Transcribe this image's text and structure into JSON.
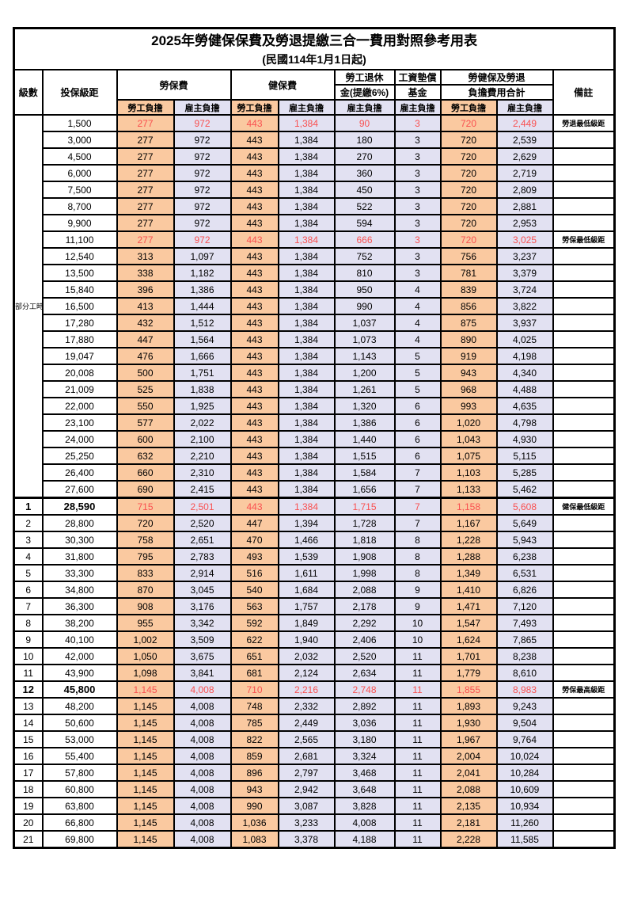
{
  "title": "2025年勞健保保費及勞退提繳三合一費用對照參考用表",
  "subtitle": "(民國114年1月1日起)",
  "colors": {
    "employee_bg": "#FAC9A0",
    "employer_bg": "#E2E1F2",
    "highlight_red": "#F95050",
    "border": "#000000"
  },
  "header": {
    "level": "級數",
    "bracket": "投保級距",
    "labor_insurance": "勞保費",
    "health_insurance": "健保費",
    "pension_line1": "勞工退休",
    "pension_line2": "金(提繳6%)",
    "wage_fund_line1": "工資墊償",
    "wage_fund_line2": "基金",
    "total_line1": "勞健保及勞退",
    "total_line2": "負擔費用合計",
    "employee": "勞工負擔",
    "employer": "雇主負擔",
    "remark": "備註"
  },
  "part_time_label": "部分工時",
  "part_time_rowspan": 23,
  "rows": [
    {
      "level": "",
      "bracket": "1,500",
      "v": [
        "277",
        "972",
        "443",
        "1,384",
        "90",
        "3",
        "720",
        "2,449"
      ],
      "remark": "勞退最低級距",
      "red": true,
      "bold": false
    },
    {
      "level": "",
      "bracket": "3,000",
      "v": [
        "277",
        "972",
        "443",
        "1,384",
        "180",
        "3",
        "720",
        "2,539"
      ],
      "remark": "",
      "red": false,
      "bold": false
    },
    {
      "level": "",
      "bracket": "4,500",
      "v": [
        "277",
        "972",
        "443",
        "1,384",
        "270",
        "3",
        "720",
        "2,629"
      ],
      "remark": "",
      "red": false,
      "bold": false
    },
    {
      "level": "",
      "bracket": "6,000",
      "v": [
        "277",
        "972",
        "443",
        "1,384",
        "360",
        "3",
        "720",
        "2,719"
      ],
      "remark": "",
      "red": false,
      "bold": false
    },
    {
      "level": "",
      "bracket": "7,500",
      "v": [
        "277",
        "972",
        "443",
        "1,384",
        "450",
        "3",
        "720",
        "2,809"
      ],
      "remark": "",
      "red": false,
      "bold": false
    },
    {
      "level": "",
      "bracket": "8,700",
      "v": [
        "277",
        "972",
        "443",
        "1,384",
        "522",
        "3",
        "720",
        "2,881"
      ],
      "remark": "",
      "red": false,
      "bold": false
    },
    {
      "level": "",
      "bracket": "9,900",
      "v": [
        "277",
        "972",
        "443",
        "1,384",
        "594",
        "3",
        "720",
        "2,953"
      ],
      "remark": "",
      "red": false,
      "bold": false
    },
    {
      "level": "",
      "bracket": "11,100",
      "v": [
        "277",
        "972",
        "443",
        "1,384",
        "666",
        "3",
        "720",
        "3,025"
      ],
      "remark": "勞保最低級距",
      "red": true,
      "bold": false
    },
    {
      "level": "",
      "bracket": "12,540",
      "v": [
        "313",
        "1,097",
        "443",
        "1,384",
        "752",
        "3",
        "756",
        "3,237"
      ],
      "remark": "",
      "red": false,
      "bold": false
    },
    {
      "level": "",
      "bracket": "13,500",
      "v": [
        "338",
        "1,182",
        "443",
        "1,384",
        "810",
        "3",
        "781",
        "3,379"
      ],
      "remark": "",
      "red": false,
      "bold": false
    },
    {
      "level": "",
      "bracket": "15,840",
      "v": [
        "396",
        "1,386",
        "443",
        "1,384",
        "950",
        "4",
        "839",
        "3,724"
      ],
      "remark": "",
      "red": false,
      "bold": false
    },
    {
      "level": "",
      "bracket": "16,500",
      "v": [
        "413",
        "1,444",
        "443",
        "1,384",
        "990",
        "4",
        "856",
        "3,822"
      ],
      "remark": "",
      "red": false,
      "bold": false
    },
    {
      "level": "",
      "bracket": "17,280",
      "v": [
        "432",
        "1,512",
        "443",
        "1,384",
        "1,037",
        "4",
        "875",
        "3,937"
      ],
      "remark": "",
      "red": false,
      "bold": false
    },
    {
      "level": "",
      "bracket": "17,880",
      "v": [
        "447",
        "1,564",
        "443",
        "1,384",
        "1,073",
        "4",
        "890",
        "4,025"
      ],
      "remark": "",
      "red": false,
      "bold": false
    },
    {
      "level": "",
      "bracket": "19,047",
      "v": [
        "476",
        "1,666",
        "443",
        "1,384",
        "1,143",
        "5",
        "919",
        "4,198"
      ],
      "remark": "",
      "red": false,
      "bold": false
    },
    {
      "level": "",
      "bracket": "20,008",
      "v": [
        "500",
        "1,751",
        "443",
        "1,384",
        "1,200",
        "5",
        "943",
        "4,340"
      ],
      "remark": "",
      "red": false,
      "bold": false
    },
    {
      "level": "",
      "bracket": "21,009",
      "v": [
        "525",
        "1,838",
        "443",
        "1,384",
        "1,261",
        "5",
        "968",
        "4,488"
      ],
      "remark": "",
      "red": false,
      "bold": false
    },
    {
      "level": "",
      "bracket": "22,000",
      "v": [
        "550",
        "1,925",
        "443",
        "1,384",
        "1,320",
        "6",
        "993",
        "4,635"
      ],
      "remark": "",
      "red": false,
      "bold": false
    },
    {
      "level": "",
      "bracket": "23,100",
      "v": [
        "577",
        "2,022",
        "443",
        "1,384",
        "1,386",
        "6",
        "1,020",
        "4,798"
      ],
      "remark": "",
      "red": false,
      "bold": false
    },
    {
      "level": "",
      "bracket": "24,000",
      "v": [
        "600",
        "2,100",
        "443",
        "1,384",
        "1,440",
        "6",
        "1,043",
        "4,930"
      ],
      "remark": "",
      "red": false,
      "bold": false
    },
    {
      "level": "",
      "bracket": "25,250",
      "v": [
        "632",
        "2,210",
        "443",
        "1,384",
        "1,515",
        "6",
        "1,075",
        "5,115"
      ],
      "remark": "",
      "red": false,
      "bold": false
    },
    {
      "level": "",
      "bracket": "26,400",
      "v": [
        "660",
        "2,310",
        "443",
        "1,384",
        "1,584",
        "7",
        "1,103",
        "5,285"
      ],
      "remark": "",
      "red": false,
      "bold": false
    },
    {
      "level": "",
      "bracket": "27,600",
      "v": [
        "690",
        "2,415",
        "443",
        "1,384",
        "1,656",
        "7",
        "1,133",
        "5,462"
      ],
      "remark": "",
      "red": false,
      "bold": false
    },
    {
      "level": "1",
      "bracket": "28,590",
      "v": [
        "715",
        "2,501",
        "443",
        "1,384",
        "1,715",
        "7",
        "1,158",
        "5,608"
      ],
      "remark": "健保最低級距",
      "red": true,
      "bold": true
    },
    {
      "level": "2",
      "bracket": "28,800",
      "v": [
        "720",
        "2,520",
        "447",
        "1,394",
        "1,728",
        "7",
        "1,167",
        "5,649"
      ],
      "remark": "",
      "red": false,
      "bold": false
    },
    {
      "level": "3",
      "bracket": "30,300",
      "v": [
        "758",
        "2,651",
        "470",
        "1,466",
        "1,818",
        "8",
        "1,228",
        "5,943"
      ],
      "remark": "",
      "red": false,
      "bold": false
    },
    {
      "level": "4",
      "bracket": "31,800",
      "v": [
        "795",
        "2,783",
        "493",
        "1,539",
        "1,908",
        "8",
        "1,288",
        "6,238"
      ],
      "remark": "",
      "red": false,
      "bold": false
    },
    {
      "level": "5",
      "bracket": "33,300",
      "v": [
        "833",
        "2,914",
        "516",
        "1,611",
        "1,998",
        "8",
        "1,349",
        "6,531"
      ],
      "remark": "",
      "red": false,
      "bold": false
    },
    {
      "level": "6",
      "bracket": "34,800",
      "v": [
        "870",
        "3,045",
        "540",
        "1,684",
        "2,088",
        "9",
        "1,410",
        "6,826"
      ],
      "remark": "",
      "red": false,
      "bold": false
    },
    {
      "level": "7",
      "bracket": "36,300",
      "v": [
        "908",
        "3,176",
        "563",
        "1,757",
        "2,178",
        "9",
        "1,471",
        "7,120"
      ],
      "remark": "",
      "red": false,
      "bold": false
    },
    {
      "level": "8",
      "bracket": "38,200",
      "v": [
        "955",
        "3,342",
        "592",
        "1,849",
        "2,292",
        "10",
        "1,547",
        "7,493"
      ],
      "remark": "",
      "red": false,
      "bold": false
    },
    {
      "level": "9",
      "bracket": "40,100",
      "v": [
        "1,002",
        "3,509",
        "622",
        "1,940",
        "2,406",
        "10",
        "1,624",
        "7,865"
      ],
      "remark": "",
      "red": false,
      "bold": false
    },
    {
      "level": "10",
      "bracket": "42,000",
      "v": [
        "1,050",
        "3,675",
        "651",
        "2,032",
        "2,520",
        "11",
        "1,701",
        "8,238"
      ],
      "remark": "",
      "red": false,
      "bold": false
    },
    {
      "level": "11",
      "bracket": "43,900",
      "v": [
        "1,098",
        "3,841",
        "681",
        "2,124",
        "2,634",
        "11",
        "1,779",
        "8,610"
      ],
      "remark": "",
      "red": false,
      "bold": false
    },
    {
      "level": "12",
      "bracket": "45,800",
      "v": [
        "1,145",
        "4,008",
        "710",
        "2,216",
        "2,748",
        "11",
        "1,855",
        "8,983"
      ],
      "remark": "勞保最高級距",
      "red": true,
      "bold": true
    },
    {
      "level": "13",
      "bracket": "48,200",
      "v": [
        "1,145",
        "4,008",
        "748",
        "2,332",
        "2,892",
        "11",
        "1,893",
        "9,243"
      ],
      "remark": "",
      "red": false,
      "bold": false
    },
    {
      "level": "14",
      "bracket": "50,600",
      "v": [
        "1,145",
        "4,008",
        "785",
        "2,449",
        "3,036",
        "11",
        "1,930",
        "9,504"
      ],
      "remark": "",
      "red": false,
      "bold": false
    },
    {
      "level": "15",
      "bracket": "53,000",
      "v": [
        "1,145",
        "4,008",
        "822",
        "2,565",
        "3,180",
        "11",
        "1,967",
        "9,764"
      ],
      "remark": "",
      "red": false,
      "bold": false
    },
    {
      "level": "16",
      "bracket": "55,400",
      "v": [
        "1,145",
        "4,008",
        "859",
        "2,681",
        "3,324",
        "11",
        "2,004",
        "10,024"
      ],
      "remark": "",
      "red": false,
      "bold": false
    },
    {
      "level": "17",
      "bracket": "57,800",
      "v": [
        "1,145",
        "4,008",
        "896",
        "2,797",
        "3,468",
        "11",
        "2,041",
        "10,284"
      ],
      "remark": "",
      "red": false,
      "bold": false
    },
    {
      "level": "18",
      "bracket": "60,800",
      "v": [
        "1,145",
        "4,008",
        "943",
        "2,942",
        "3,648",
        "11",
        "2,088",
        "10,609"
      ],
      "remark": "",
      "red": false,
      "bold": false
    },
    {
      "level": "19",
      "bracket": "63,800",
      "v": [
        "1,145",
        "4,008",
        "990",
        "3,087",
        "3,828",
        "11",
        "2,135",
        "10,934"
      ],
      "remark": "",
      "red": false,
      "bold": false
    },
    {
      "level": "20",
      "bracket": "66,800",
      "v": [
        "1,145",
        "4,008",
        "1,036",
        "3,233",
        "4,008",
        "11",
        "2,181",
        "11,260"
      ],
      "remark": "",
      "red": false,
      "bold": false
    },
    {
      "level": "21",
      "bracket": "69,800",
      "v": [
        "1,145",
        "4,008",
        "1,083",
        "3,378",
        "4,188",
        "11",
        "2,228",
        "11,585"
      ],
      "remark": "",
      "red": false,
      "bold": false
    }
  ]
}
